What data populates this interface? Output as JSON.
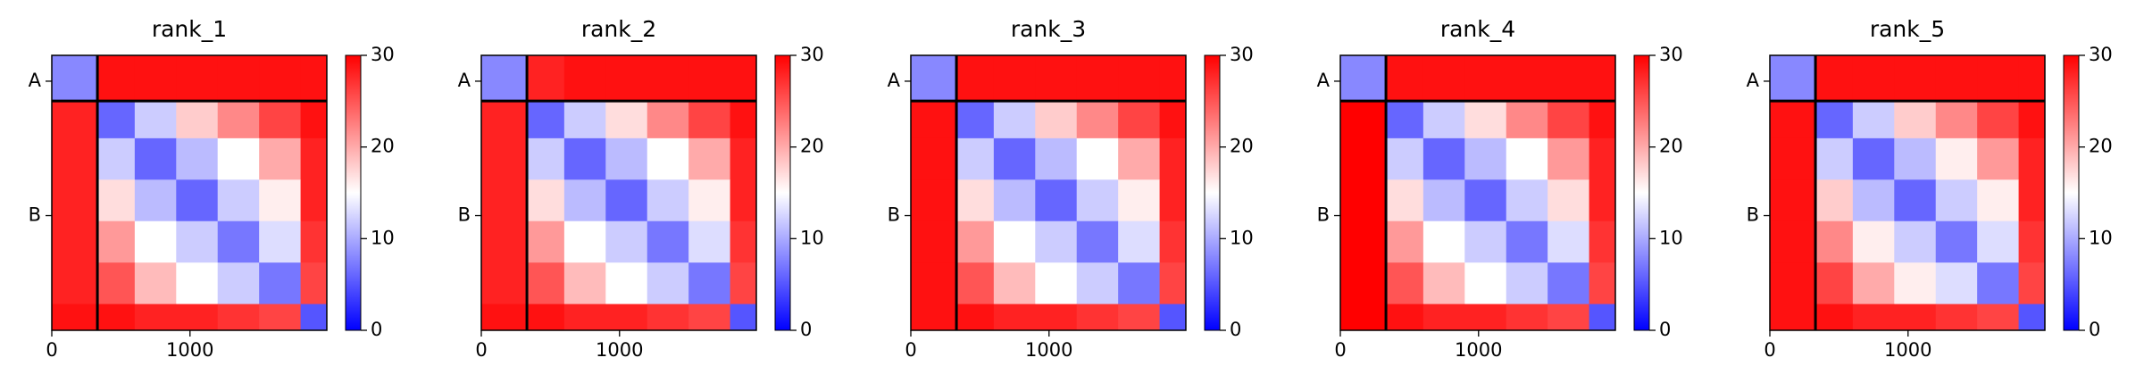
{
  "chart_data": [
    {
      "type": "heatmap",
      "title": "rank_1",
      "bins": [
        0,
        330,
        600,
        900,
        1200,
        1500,
        1800,
        1990
      ],
      "matrix": [
        [
          8,
          29,
          29,
          29,
          29,
          29,
          29
        ],
        [
          28,
          6,
          12,
          18,
          22,
          26,
          29
        ],
        [
          28,
          12,
          6,
          11,
          15,
          20,
          28
        ],
        [
          28,
          17,
          11,
          6,
          12,
          16,
          28
        ],
        [
          28,
          21,
          15,
          12,
          7,
          13,
          27
        ],
        [
          28,
          25,
          19,
          15,
          12,
          7,
          26
        ],
        [
          29,
          29,
          28,
          28,
          27,
          26,
          5
        ]
      ],
      "chain_boundaries": [
        330
      ],
      "xlim": [
        0,
        1990
      ],
      "xticks": [
        0,
        1000
      ],
      "ylim": [
        0,
        1990
      ],
      "yticks": [
        {
          "value": 187,
          "label": "A"
        },
        {
          "value": 1160,
          "label": "B"
        }
      ],
      "clim": [
        0,
        30
      ],
      "cticks": [
        0,
        10,
        20,
        30
      ],
      "colormap": "bwr"
    },
    {
      "type": "heatmap",
      "title": "rank_2",
      "bins": [
        0,
        330,
        600,
        900,
        1200,
        1500,
        1800,
        1990
      ],
      "matrix": [
        [
          8,
          28,
          29,
          29,
          29,
          29,
          29
        ],
        [
          28,
          6,
          12,
          17,
          22,
          26,
          29
        ],
        [
          28,
          12,
          6,
          11,
          15,
          20,
          28
        ],
        [
          28,
          17,
          11,
          6,
          12,
          16,
          28
        ],
        [
          28,
          21,
          15,
          12,
          7,
          13,
          27
        ],
        [
          28,
          25,
          19,
          15,
          12,
          7,
          26
        ],
        [
          29,
          29,
          28,
          28,
          27,
          26,
          5
        ]
      ],
      "chain_boundaries": [
        330
      ],
      "xlim": [
        0,
        1990
      ],
      "xticks": [
        0,
        1000
      ],
      "ylim": [
        0,
        1990
      ],
      "yticks": [
        {
          "value": 187,
          "label": "A"
        },
        {
          "value": 1160,
          "label": "B"
        }
      ],
      "clim": [
        0,
        30
      ],
      "cticks": [
        0,
        10,
        20,
        30
      ],
      "colormap": "bwr"
    },
    {
      "type": "heatmap",
      "title": "rank_3",
      "bins": [
        0,
        330,
        600,
        900,
        1200,
        1500,
        1800,
        1990
      ],
      "matrix": [
        [
          8,
          29,
          29,
          29,
          29,
          29,
          29
        ],
        [
          29,
          6,
          12,
          18,
          22,
          26,
          29
        ],
        [
          29,
          12,
          6,
          11,
          15,
          20,
          28
        ],
        [
          29,
          17,
          11,
          6,
          12,
          16,
          28
        ],
        [
          29,
          21,
          15,
          12,
          7,
          13,
          27
        ],
        [
          29,
          25,
          19,
          15,
          12,
          7,
          26
        ],
        [
          29,
          29,
          28,
          28,
          27,
          26,
          5
        ]
      ],
      "chain_boundaries": [
        330
      ],
      "xlim": [
        0,
        1990
      ],
      "xticks": [
        0,
        1000
      ],
      "ylim": [
        0,
        1990
      ],
      "yticks": [
        {
          "value": 187,
          "label": "A"
        },
        {
          "value": 1160,
          "label": "B"
        }
      ],
      "clim": [
        0,
        30
      ],
      "cticks": [
        0,
        10,
        20,
        30
      ],
      "colormap": "bwr"
    },
    {
      "type": "heatmap",
      "title": "rank_4",
      "bins": [
        0,
        330,
        600,
        900,
        1200,
        1500,
        1800,
        1990
      ],
      "matrix": [
        [
          8,
          29,
          29,
          29,
          29,
          29,
          29
        ],
        [
          30,
          6,
          12,
          17,
          22,
          26,
          29
        ],
        [
          30,
          12,
          6,
          11,
          15,
          21,
          28
        ],
        [
          30,
          17,
          11,
          6,
          12,
          17,
          28
        ],
        [
          30,
          21,
          15,
          12,
          7,
          13,
          27
        ],
        [
          30,
          25,
          19,
          15,
          12,
          7,
          26
        ],
        [
          30,
          29,
          28,
          28,
          27,
          26,
          5
        ]
      ],
      "chain_boundaries": [
        330
      ],
      "xlim": [
        0,
        1990
      ],
      "xticks": [
        0,
        1000
      ],
      "ylim": [
        0,
        1990
      ],
      "yticks": [
        {
          "value": 187,
          "label": "A"
        },
        {
          "value": 1160,
          "label": "B"
        }
      ],
      "clim": [
        0,
        30
      ],
      "cticks": [
        0,
        10,
        20,
        30
      ],
      "colormap": "bwr"
    },
    {
      "type": "heatmap",
      "title": "rank_5",
      "bins": [
        0,
        330,
        600,
        900,
        1200,
        1500,
        1800,
        1990
      ],
      "matrix": [
        [
          8,
          29,
          29,
          29,
          29,
          29,
          29
        ],
        [
          29,
          6,
          12,
          18,
          22,
          26,
          29
        ],
        [
          29,
          12,
          6,
          11,
          16,
          21,
          28
        ],
        [
          29,
          18,
          11,
          6,
          12,
          16,
          28
        ],
        [
          29,
          22,
          16,
          12,
          7,
          13,
          27
        ],
        [
          29,
          26,
          20,
          16,
          13,
          7,
          26
        ],
        [
          29,
          29,
          28,
          28,
          27,
          26,
          5
        ]
      ],
      "chain_boundaries": [
        330
      ],
      "xlim": [
        0,
        1990
      ],
      "xticks": [
        0,
        1000
      ],
      "ylim": [
        0,
        1990
      ],
      "yticks": [
        {
          "value": 187,
          "label": "A"
        },
        {
          "value": 1160,
          "label": "B"
        }
      ],
      "clim": [
        0,
        30
      ],
      "cticks": [
        0,
        10,
        20,
        30
      ],
      "colormap": "bwr"
    }
  ]
}
